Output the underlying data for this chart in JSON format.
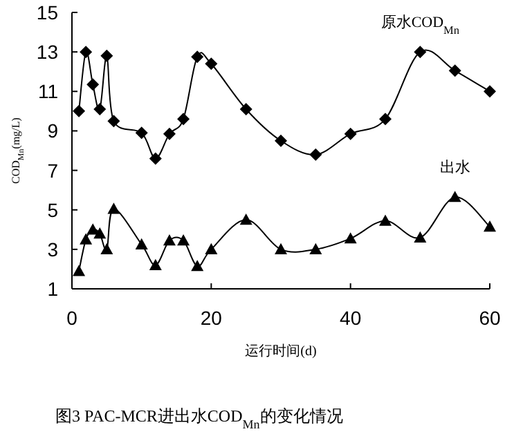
{
  "chart_data": {
    "type": "line",
    "xlabel": "运行时间(d)",
    "ylabel": "COD$_{Mn}$(mg/L)",
    "xlim": [
      0,
      60
    ],
    "xticks": [
      0,
      20,
      40,
      60
    ],
    "ylim": [
      1,
      15
    ],
    "yticks": [
      1,
      3,
      5,
      7,
      9,
      11,
      13,
      15
    ],
    "grid": false,
    "series": [
      {
        "name": "原水COD$_{Mn}$",
        "color": "#000000",
        "marker": "diamond",
        "x": [
          1,
          2,
          3,
          4,
          5,
          6,
          10,
          12,
          14,
          16,
          18,
          20,
          25,
          30,
          35,
          40,
          45,
          50,
          55,
          60
        ],
        "values": [
          10.0,
          13.0,
          11.35,
          10.1,
          12.8,
          9.5,
          8.9,
          7.6,
          8.85,
          9.6,
          12.75,
          12.4,
          10.1,
          8.5,
          7.8,
          8.85,
          9.6,
          13.0,
          12.05,
          11.0
        ]
      },
      {
        "name": "出水",
        "color": "#000000",
        "marker": "triangle",
        "x": [
          1,
          2,
          3,
          4,
          5,
          6,
          10,
          12,
          14,
          16,
          18,
          20,
          25,
          30,
          35,
          40,
          45,
          50,
          55,
          60
        ],
        "values": [
          1.9,
          3.5,
          4.0,
          3.8,
          3.0,
          5.05,
          3.25,
          2.2,
          3.45,
          3.45,
          2.15,
          3.0,
          4.5,
          3.0,
          3.0,
          3.55,
          4.45,
          3.6,
          5.65,
          4.15
        ]
      }
    ],
    "annotations": [
      "图3    PAC-MCR进出水COD$_{Mn}$的变化情况"
    ]
  }
}
